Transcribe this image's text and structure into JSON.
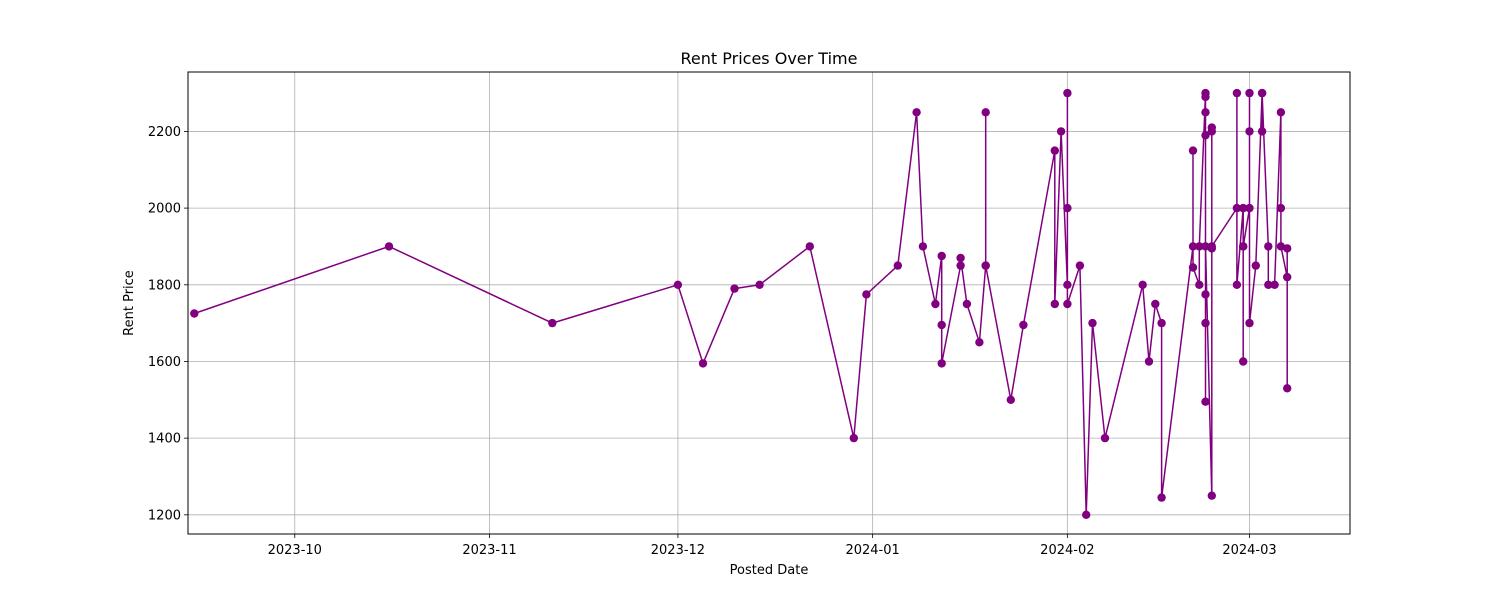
{
  "chart_data": {
    "type": "line",
    "title": "Rent Prices Over Time",
    "xlabel": "Posted Date",
    "ylabel": "Rent Price",
    "x_axis_type": "date",
    "xlim": [
      "2023-09-14",
      "2024-03-17"
    ],
    "ylim": [
      1150,
      2355
    ],
    "xticks": [
      "2023-10",
      "2023-11",
      "2023-12",
      "2024-01",
      "2024-02",
      "2024-03"
    ],
    "yticks": [
      1200,
      1400,
      1600,
      1800,
      2000,
      2200
    ],
    "grid": true,
    "legend": false,
    "color": "#800080",
    "marker": "circle",
    "series": [
      {
        "x": [
          "2023-09-15",
          "2023-10-16",
          "2023-11-11",
          "2023-12-01",
          "2023-12-05",
          "2023-12-10",
          "2023-12-14",
          "2023-12-22",
          "2023-12-29",
          "2023-12-31",
          "2024-01-05",
          "2024-01-08",
          "2024-01-09",
          "2024-01-11",
          "2024-01-12",
          "2024-01-12",
          "2024-01-12",
          "2024-01-15",
          "2024-01-15",
          "2024-01-16",
          "2024-01-18",
          "2024-01-19",
          "2024-01-19",
          "2024-01-19",
          "2024-01-23",
          "2024-01-25",
          "2024-01-30",
          "2024-01-30",
          "2024-01-31",
          "2024-02-01",
          "2024-02-01",
          "2024-02-01",
          "2024-02-01",
          "2024-02-03",
          "2024-02-04",
          "2024-02-05",
          "2024-02-07",
          "2024-02-13",
          "2024-02-14",
          "2024-02-15",
          "2024-02-16",
          "2024-02-16",
          "2024-02-21",
          "2024-02-21",
          "2024-02-21",
          "2024-02-22",
          "2024-02-22",
          "2024-02-23",
          "2024-02-23",
          "2024-02-23",
          "2024-02-23",
          "2024-02-23",
          "2024-02-23",
          "2024-02-23",
          "2024-02-23",
          "2024-02-24",
          "2024-02-24",
          "2024-02-24",
          "2024-02-24",
          "2024-02-24",
          "2024-02-28",
          "2024-02-28",
          "2024-02-28",
          "2024-02-29",
          "2024-02-29",
          "2024-02-29",
          "2024-02-29",
          "2024-03-01",
          "2024-03-01",
          "2024-03-01",
          "2024-03-01",
          "2024-03-02",
          "2024-03-03",
          "2024-03-03",
          "2024-03-03",
          "2024-03-04",
          "2024-03-04",
          "2024-03-05",
          "2024-03-06",
          "2024-03-06",
          "2024-03-06",
          "2024-03-07",
          "2024-03-07",
          "2024-03-07"
        ],
        "y": [
          1725,
          1900,
          1700,
          1800,
          1595,
          1790,
          1800,
          1900,
          1400,
          1775,
          1850,
          2250,
          1900,
          1750,
          1875,
          1695,
          1595,
          1850,
          1870,
          1750,
          1650,
          1850,
          2250,
          1850,
          1500,
          1695,
          2150,
          1750,
          2200,
          1800,
          2000,
          2300,
          1750,
          1850,
          1200,
          1700,
          1400,
          1800,
          1600,
          1750,
          1700,
          1245,
          1900,
          2150,
          1845,
          1800,
          1900,
          2300,
          2290,
          1495,
          2190,
          2250,
          1700,
          1775,
          1900,
          1250,
          1895,
          2210,
          2200,
          1900,
          2000,
          2300,
          1800,
          2000,
          1900,
          1600,
          1900,
          2000,
          2300,
          2200,
          1700,
          1850,
          2300,
          2200,
          2300,
          1900,
          1800,
          1800,
          2250,
          2000,
          1900,
          1820,
          1530,
          1895
        ]
      }
    ]
  }
}
